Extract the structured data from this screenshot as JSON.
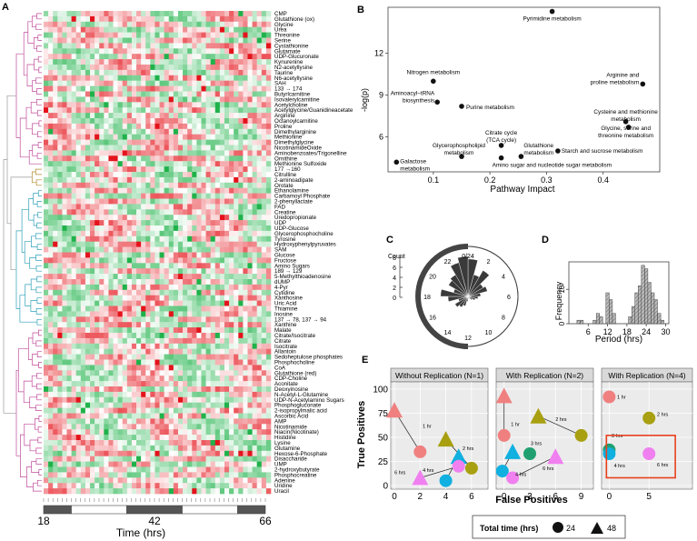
{
  "panels": {
    "A": {
      "letter": "A",
      "metabolites": [
        "CMP",
        "Glutathione (ox)",
        "Glycine",
        "Urea",
        "Threonine",
        "Serine",
        "Cystathionine",
        "Glutamate",
        "UDP-Glucuronate",
        "Kynurenine",
        "N2-acetyllysine",
        "Taurine",
        "N6-acetyllysine",
        "SAH",
        "133 → 174",
        "Butyrlcarnitine",
        "Isovalerylcarnitine",
        "Acetylcholine",
        "Acetylglycine/Guanidineacetate",
        "Arginine",
        "Octanoylcarnitine",
        "Proline",
        "Dimethylarginine",
        "Methionine",
        "Dimethylglycine",
        "NicotinamideOxide",
        "Aminobenzoates/Trigonelline",
        "Ornithine",
        "Methionine Sulfoxide",
        "177 →160",
        "Citrulline",
        "2-aminoadipate",
        "Orotate",
        "Ethanolamine",
        "Carbamoyl Phosphate",
        "2-phenyllactate",
        "FAD",
        "Creatine",
        "Uredopropionate",
        "UDP",
        "UDP-Glucose",
        "Glycerophosphocholine",
        "Tyrosine",
        "Hydroxyphenylpyruvates",
        "SAM",
        "Glucose",
        "Fructose",
        "Amino Sugars",
        "189 → 129",
        "5-Methylthioadenosine",
        "dUMP",
        "4-Pyr",
        "Cytidine",
        "Xanthosine",
        "Uric Acid",
        "Thiamine",
        "Inosine",
        "137 → 78, 137 → 94",
        "Xanthine",
        "Malate",
        "Citrate/Isocitrate",
        "Citrate",
        "Isocitrate",
        "Allantoin",
        "Sedoheptulose phosphates",
        "Phosphocholine",
        "CoA",
        "Glutathione (red)",
        "CDP-Choline",
        "Aconitate",
        "Deoxyinosine",
        "N-Acetyl-L-Glutamine",
        "UDP-N-Acetylamino Sugars",
        "Phosphogluconate",
        "2-isopropylmalic acid",
        "Ascorbic Acid",
        "AMP",
        "Nicotinamide",
        "Niacin(Nicotinate)",
        "Histidine",
        "Lysine",
        "Glutamine",
        "Hexose-6-Phosphate",
        "Disaccharide",
        "UMP",
        "2-hydroxybutyrate",
        "Phosphocreatine",
        "Adenine",
        "Uridine",
        "Uracil"
      ],
      "time_ticks": [
        "18",
        "42",
        "66"
      ],
      "xlabel": "Time (hrs)",
      "cluster_colors": [
        "#c04a9a",
        "#b08a2a",
        "#2ea0b8",
        "#c04a9a"
      ],
      "heat_colors": {
        "high": "#e4131b",
        "mid": "#ffffff",
        "low": "#1fb24a"
      }
    },
    "B": {
      "letter": "B",
      "ylabel": "-log(p)",
      "xlabel": "Pathway Impact",
      "xticks": [
        "0.1",
        "0.2",
        "0.3",
        "0.4"
      ],
      "yticks": [
        "6",
        "9",
        "12"
      ]
    },
    "C": {
      "letter": "C",
      "count_label": "Count",
      "count_ticks": [
        "8",
        "6",
        "4",
        "2",
        "0"
      ],
      "clock_labels": [
        "0/24",
        "2",
        "4",
        "6",
        "8",
        "10",
        "12",
        "14",
        "16",
        "18",
        "20",
        "22"
      ]
    },
    "D": {
      "letter": "D",
      "ylabel": "Frequency",
      "xlabel": "Period (hrs)",
      "xticks": [
        "6",
        "12",
        "18",
        "24",
        "30"
      ],
      "yticks": [
        "0",
        "10"
      ]
    },
    "E": {
      "letter": "E",
      "ylabel": "True Positives",
      "xlabel": "False Positives",
      "facets": [
        "Without Replication (N=1)",
        "With Replication (N=2)",
        "With Replication (N=4)"
      ],
      "yticks": [
        "0",
        "25",
        "50",
        "75",
        "100"
      ],
      "legend_title": "Total time (hrs)",
      "legend_items": [
        "24",
        "48"
      ],
      "group_colors": {
        "1 hr": "#f08080",
        "2 hrs": "#a8a010",
        "3 hrs": "#20a070",
        "4 hrs": "#10b0e0",
        "6 hrs": "#f080f0"
      },
      "highlight_color": "#e8401c"
    }
  },
  "chart_data": [
    {
      "type": "heatmap",
      "panel": "A",
      "xlabel": "Time (hrs)",
      "x_range": [
        18,
        66
      ],
      "x_ticks": [
        18,
        42,
        66
      ],
      "rows": 90,
      "columns": 49,
      "scale": "red high, white mid, green low"
    },
    {
      "type": "scatter",
      "panel": "B",
      "xlabel": "Pathway Impact",
      "ylabel": "-log(p)",
      "xlim": [
        0.02,
        0.5
      ],
      "ylim": [
        3.5,
        15.3
      ],
      "points": [
        {
          "label": "Pyrimidine metabolism",
          "x": 0.31,
          "y": 15.0
        },
        {
          "label": "Nitrogen metabolism",
          "x": 0.1,
          "y": 10.0
        },
        {
          "label": "Arginine and proline metabolism",
          "x": 0.47,
          "y": 9.8
        },
        {
          "label": "Aminoacyl-tRNA biosynthesis",
          "x": 0.107,
          "y": 8.5
        },
        {
          "label": "Purine metabolism",
          "x": 0.15,
          "y": 8.2
        },
        {
          "label": "Cysteine and methionine metabolism",
          "x": 0.44,
          "y": 7.1
        },
        {
          "label": "Glycine, serine and threonine metabolism",
          "x": 0.445,
          "y": 6.7
        },
        {
          "label": "Citrate cycle (TCA cycle)",
          "x": 0.22,
          "y": 5.4
        },
        {
          "label": "Glycerophospholipid metabolism",
          "x": 0.15,
          "y": 4.6
        },
        {
          "label": "Glutathione metabolism",
          "x": 0.255,
          "y": 4.6
        },
        {
          "label": "Starch and sucrose metabolism",
          "x": 0.32,
          "y": 5.0
        },
        {
          "label": "Galactose metabolism",
          "x": 0.035,
          "y": 4.2
        },
        {
          "label": "Amino sugar and nucleotide sugar metabolism",
          "x": 0.22,
          "y": 4.5
        }
      ]
    },
    {
      "type": "bar",
      "panel": "C",
      "chart": "rose",
      "categories": [
        "0",
        "1",
        "2",
        "3",
        "4",
        "5",
        "6",
        "7",
        "8",
        "9",
        "10",
        "11",
        "12",
        "13",
        "14",
        "15",
        "16",
        "17",
        "18",
        "19",
        "20",
        "21",
        "22",
        "23"
      ],
      "values": [
        7.5,
        4.5,
        6.0,
        3.5,
        4.0,
        2.5,
        2.0,
        1.5,
        1.0,
        0.5,
        0.5,
        0.5,
        1.0,
        2.0,
        2.5,
        3.0,
        2.0,
        4.0,
        5.5,
        3.0,
        4.5,
        5.0,
        7.0,
        8.0
      ],
      "ylim": [
        0,
        8
      ]
    },
    {
      "type": "bar",
      "panel": "D",
      "chart": "histogram",
      "xlabel": "Period (hrs)",
      "ylabel": "Frequency",
      "xlim": [
        0,
        31
      ],
      "ylim": [
        0,
        18
      ],
      "bins": [
        {
          "x": 3,
          "value": 1
        },
        {
          "x": 4,
          "value": 1
        },
        {
          "x": 8,
          "value": 1
        },
        {
          "x": 9,
          "value": 3
        },
        {
          "x": 10,
          "value": 2
        },
        {
          "x": 12,
          "value": 9
        },
        {
          "x": 13,
          "value": 7
        },
        {
          "x": 14,
          "value": 3
        },
        {
          "x": 19,
          "value": 2
        },
        {
          "x": 20,
          "value": 5
        },
        {
          "x": 21,
          "value": 9
        },
        {
          "x": 22,
          "value": 11
        },
        {
          "x": 23,
          "value": 17
        },
        {
          "x": 24,
          "value": 16
        },
        {
          "x": 25,
          "value": 12
        },
        {
          "x": 26,
          "value": 9
        },
        {
          "x": 27,
          "value": 7
        },
        {
          "x": 28,
          "value": 3
        },
        {
          "x": 29,
          "value": 1
        }
      ]
    },
    {
      "type": "scatter",
      "panel": "E",
      "xlabel": "False Positives",
      "ylabel": "True Positives",
      "ylim": [
        0,
        100
      ],
      "facets": [
        {
          "name": "Without Replication (N=1)",
          "xlim": [
            0,
            7
          ],
          "xticks": [
            0,
            2,
            4,
            6
          ],
          "points": [
            {
              "group": "1 hr",
              "total": 48,
              "x": 0,
              "y": 78
            },
            {
              "group": "1 hr",
              "total": 24,
              "x": 2,
              "y": 35
            },
            {
              "group": "2 hrs",
              "total": 48,
              "x": 4,
              "y": 48
            },
            {
              "group": "2 hrs",
              "total": 24,
              "x": 6,
              "y": 18
            },
            {
              "group": "4 hrs",
              "total": 48,
              "x": 5,
              "y": 30
            },
            {
              "group": "4 hrs",
              "total": 24,
              "x": 4,
              "y": 5
            },
            {
              "group": "6 hrs",
              "total": 48,
              "x": 2,
              "y": 8
            },
            {
              "group": "6 hrs",
              "total": 24,
              "x": 5,
              "y": 20
            }
          ],
          "labels": [
            {
              "text": "1 hr",
              "x": 2.2,
              "y": 60
            },
            {
              "text": "2 hrs",
              "x": 5.3,
              "y": 37
            },
            {
              "text": "4 hrs",
              "x": 2.2,
              "y": 14
            },
            {
              "text": "6 hrs",
              "x": 0.0,
              "y": 12
            }
          ]
        },
        {
          "name": "With Replication (N=2)",
          "xlim": [
            -0.5,
            10
          ],
          "xticks": [
            0,
            3,
            6,
            9
          ],
          "points": [
            {
              "group": "1 hr",
              "total": 48,
              "x": 0,
              "y": 93
            },
            {
              "group": "1 hr",
              "total": 24,
              "x": 0,
              "y": 52
            },
            {
              "group": "2 hrs",
              "total": 48,
              "x": 4,
              "y": 72
            },
            {
              "group": "2 hrs",
              "total": 24,
              "x": 9,
              "y": 52
            },
            {
              "group": "3 hrs",
              "total": 24,
              "x": 3,
              "y": 33
            },
            {
              "group": "4 hrs",
              "total": 48,
              "x": 1,
              "y": 35
            },
            {
              "group": "4 hrs",
              "total": 24,
              "x": -0.2,
              "y": 15
            },
            {
              "group": "6 hrs",
              "total": 48,
              "x": 6,
              "y": 30
            },
            {
              "group": "6 hrs",
              "total": 24,
              "x": 1,
              "y": 8
            }
          ],
          "labels": [
            {
              "text": "1 hr",
              "x": 0.8,
              "y": 62
            },
            {
              "text": "2 hrs",
              "x": 6.0,
              "y": 67
            },
            {
              "text": "3 hrs",
              "x": 3.1,
              "y": 42
            },
            {
              "text": "4 hrs",
              "x": 1.3,
              "y": 10
            },
            {
              "text": "6 hrs",
              "x": 4.5,
              "y": 16
            }
          ]
        },
        {
          "name": "With Replication (N=4)",
          "xlim": [
            -0.5,
            10
          ],
          "xticks": [
            0,
            5
          ],
          "points": [
            {
              "group": "1 hr",
              "total": 24,
              "x": 0,
              "y": 92
            },
            {
              "group": "2 hrs",
              "total": 24,
              "x": 5,
              "y": 70
            },
            {
              "group": "3 hrs",
              "total": 24,
              "x": 0,
              "y": 37
            },
            {
              "group": "4 hrs",
              "total": 24,
              "x": 0,
              "y": 33
            },
            {
              "group": "6 hrs",
              "total": 24,
              "x": 5,
              "y": 33
            }
          ],
          "labels": [
            {
              "text": "1 hr",
              "x": 1.0,
              "y": 90
            },
            {
              "text": "2 hrs",
              "x": 6.0,
              "y": 72
            },
            {
              "text": "3 hrs",
              "x": 0.3,
              "y": 50
            },
            {
              "text": "4 hrs",
              "x": 0.6,
              "y": 19
            },
            {
              "text": "6 hrs",
              "x": 6.0,
              "y": 20
            }
          ]
        }
      ]
    }
  ]
}
